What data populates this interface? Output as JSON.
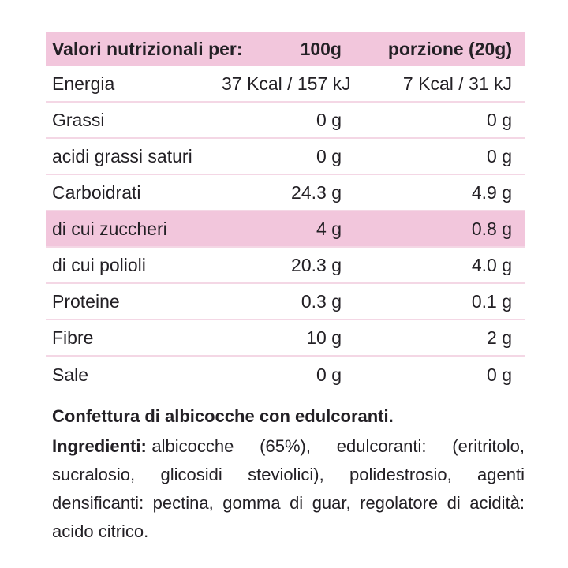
{
  "table": {
    "header": {
      "col1": "Valori nutrizionali per:",
      "col2": "100g",
      "col3": "porzione (20g)"
    },
    "rows": [
      {
        "label": "Energia",
        "per_100g": "37 Kcal / 157 kJ",
        "per_portion": "7 Kcal / 31 kJ",
        "highlight": false
      },
      {
        "label": "Grassi",
        "per_100g": "0 g",
        "per_portion": "0 g",
        "highlight": false
      },
      {
        "label": "acidi grassi saturi",
        "per_100g": "0 g",
        "per_portion": "0 g",
        "highlight": false
      },
      {
        "label": "Carboidrati",
        "per_100g": "24.3 g",
        "per_portion": "4.9 g",
        "highlight": false
      },
      {
        "label": "di cui zuccheri",
        "per_100g": "4 g",
        "per_portion": "0.8 g",
        "highlight": true
      },
      {
        "label": "di cui polioli",
        "per_100g": "20.3 g",
        "per_portion": "4.0 g",
        "highlight": false
      },
      {
        "label": "Proteine",
        "per_100g": "0.3 g",
        "per_portion": "0.1 g",
        "highlight": false
      },
      {
        "label": "Fibre",
        "per_100g": "10 g",
        "per_portion": "2 g",
        "highlight": false
      },
      {
        "label": "Sale",
        "per_100g": "0 g",
        "per_portion": "0 g",
        "highlight": false
      }
    ]
  },
  "description": {
    "product_name": "Confettura di albicocche con edulcoranti.",
    "ingredients": {
      "label": "Ingredienti:",
      "line1_rest": "albicocche (65%), edulcoranti: (eritritolo,",
      "line2": "sucralosio, glicosidi steviolici), polidestrosio, agenti",
      "line3": "densificanti: pectina, gomma di guar, regolatore di acidità:",
      "line4": "acido citrico.",
      "full_text": "Ingredienti: albicocche (65%), edulcoranti: (eritritolo, sucralosio, glicosidi steviolici), polidestrosio, agenti densificanti: pectina, gomma di guar, regolatore di acidità: acido citrico."
    }
  },
  "colors": {
    "header_bg": "#f2c6dc",
    "highlight_row_bg": "#f2c6dc",
    "divider": "#f4d7e5",
    "text": "#232025",
    "background": "#ffffff"
  }
}
